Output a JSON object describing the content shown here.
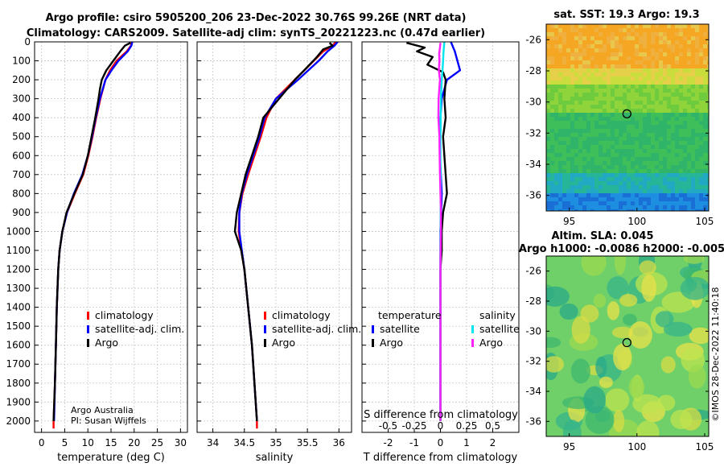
{
  "header": {
    "title_line1": "Argo profile: csiro 5905200_206 23-Dec-2022 30.76S 99.26E (NRT data)",
    "title_line2": "Climatology: CARS2009. Satellite-adj clim: synTS_20221223.nc (0.47d earlier)"
  },
  "credits": {
    "line1": "Argo Australia",
    "line2": "PI: Susan Wijffels"
  },
  "watermark": "©IMOS 28-Dec-2022 11:40:18",
  "colors": {
    "climatology": "#ff0000",
    "satellite": "#0000ff",
    "argo": "#000000",
    "sat_salinity": "#00e5ee",
    "argo_salinity": "#ff22ff"
  },
  "chart_data": [
    {
      "id": "temperature",
      "type": "line",
      "xlabel": "temperature (deg C)",
      "xlim": [
        -1.5,
        31.5
      ],
      "xticks": [
        0,
        5,
        10,
        15,
        20,
        25,
        30
      ],
      "ylim": [
        0,
        2060
      ],
      "yticks": [
        0,
        100,
        200,
        300,
        400,
        500,
        600,
        700,
        800,
        900,
        1000,
        1100,
        1200,
        1300,
        1400,
        1500,
        1600,
        1700,
        1800,
        1900,
        2000
      ],
      "legend": [
        "climatology",
        "satellite-adj. clim.",
        "Argo"
      ],
      "series": [
        {
          "name": "climatology",
          "pressure": [
            0,
            20,
            50,
            100,
            150,
            200,
            300,
            400,
            500,
            600,
            700,
            800,
            900,
            1000,
            1100,
            1200,
            1400,
            1600,
            1800,
            2000,
            2040
          ],
          "values": [
            19.5,
            19.3,
            18.4,
            16.2,
            14.8,
            13.8,
            12.7,
            11.8,
            11.0,
            10.1,
            9.0,
            7.2,
            5.5,
            4.5,
            3.9,
            3.6,
            3.3,
            3.1,
            2.9,
            2.6,
            2.6
          ]
        },
        {
          "name": "satellite-adj. clim.",
          "pressure": [
            0,
            20,
            50,
            100,
            150,
            200,
            300,
            400,
            500,
            600,
            700,
            800,
            900,
            1000,
            1100,
            1200,
            1400,
            1600,
            1800,
            2000
          ],
          "values": [
            19.6,
            19.4,
            18.6,
            16.6,
            15.1,
            13.8,
            12.6,
            11.7,
            10.9,
            10.0,
            8.8,
            7.0,
            5.5,
            4.5,
            3.9,
            3.6,
            3.3,
            3.1,
            2.9,
            2.7
          ]
        },
        {
          "name": "Argo",
          "pressure": [
            5,
            20,
            50,
            100,
            150,
            200,
            250,
            300,
            400,
            500,
            600,
            700,
            800,
            900,
            1000,
            1100,
            1200,
            1400,
            1600,
            1800,
            2000
          ],
          "values": [
            19.2,
            18.0,
            17.0,
            15.5,
            14.0,
            13.0,
            12.6,
            12.3,
            11.6,
            10.8,
            10.0,
            8.9,
            7.1,
            5.4,
            4.5,
            3.9,
            3.6,
            3.3,
            3.1,
            2.9,
            2.6
          ]
        }
      ]
    },
    {
      "id": "salinity",
      "type": "line",
      "xlabel": "salinity",
      "xlim": [
        33.75,
        36.2
      ],
      "xticks": [
        34,
        34.5,
        35,
        35.5,
        36
      ],
      "ylim": [
        0,
        2060
      ],
      "legend": [
        "climatology",
        "satellite-adj. clim.",
        "Argo"
      ],
      "series": [
        {
          "name": "climatology",
          "pressure": [
            0,
            20,
            50,
            100,
            200,
            300,
            400,
            500,
            600,
            700,
            800,
            900,
            1000,
            1100,
            1200,
            1400,
            1600,
            1800,
            2000,
            2040
          ],
          "values": [
            35.95,
            35.9,
            35.75,
            35.6,
            35.3,
            35.0,
            34.85,
            34.76,
            34.66,
            34.56,
            34.47,
            34.42,
            34.41,
            34.45,
            34.5,
            34.56,
            34.62,
            34.66,
            34.7,
            34.7
          ]
        },
        {
          "name": "satellite-adj. clim.",
          "pressure": [
            0,
            20,
            50,
            100,
            200,
            300,
            400,
            500,
            600,
            700,
            800,
            900,
            1000,
            1100,
            1200,
            1400,
            1600,
            1800,
            2000
          ],
          "values": [
            35.98,
            35.93,
            35.82,
            35.68,
            35.35,
            35.0,
            34.82,
            34.74,
            34.64,
            34.54,
            34.46,
            34.42,
            34.42,
            34.46,
            34.5,
            34.56,
            34.62,
            34.66,
            34.7
          ]
        },
        {
          "name": "Argo",
          "pressure": [
            5,
            20,
            40,
            80,
            150,
            200,
            300,
            400,
            500,
            600,
            700,
            800,
            900,
            1000,
            1100,
            1200,
            1400,
            1600,
            1800,
            2000
          ],
          "values": [
            35.85,
            35.9,
            35.75,
            35.65,
            35.45,
            35.3,
            35.05,
            34.8,
            34.72,
            34.62,
            34.52,
            34.45,
            34.38,
            34.35,
            34.45,
            34.5,
            34.56,
            34.62,
            34.66,
            34.7
          ]
        }
      ]
    },
    {
      "id": "difference",
      "type": "line",
      "xlabel": "T difference from climatology",
      "xlabel_top": "S difference from climatology",
      "xlim": [
        -3,
        3
      ],
      "xticks": [
        -2,
        -1,
        0,
        1,
        2
      ],
      "xticks_top": [
        "-0.5",
        "-0.25",
        "0",
        "0.25",
        "0.5"
      ],
      "ylim": [
        0,
        2060
      ],
      "legend_left_title": "temperature",
      "legend_right_title": "salinity",
      "legend_left": [
        "satellite",
        "Argo"
      ],
      "legend_right": [
        "satellite",
        "Argo"
      ],
      "series": [
        {
          "name": "T satellite",
          "pressure": [
            0,
            50,
            100,
            150,
            200,
            300,
            400,
            600,
            800,
            1000,
            1200,
            1400,
            1600,
            1800,
            2000
          ],
          "values": [
            0.4,
            0.55,
            0.65,
            0.75,
            0.25,
            0.05,
            0,
            -0.02,
            0.05,
            0,
            0,
            0,
            0,
            0,
            0
          ]
        },
        {
          "name": "T Argo",
          "pressure": [
            5,
            30,
            50,
            80,
            120,
            160,
            200,
            300,
            400,
            500,
            600,
            700,
            800,
            900,
            1000,
            1100,
            1200,
            1400,
            1600,
            1800,
            2000
          ],
          "values": [
            -1.3,
            -0.6,
            -0.9,
            -0.3,
            -0.5,
            0.1,
            0.2,
            0.15,
            0.2,
            0.1,
            0.15,
            0.2,
            0.25,
            0.1,
            0.05,
            0.05,
            0,
            0,
            0,
            0,
            0
          ]
        },
        {
          "name": "S satellite",
          "pressure": [
            0,
            50,
            100,
            150,
            200,
            300,
            400,
            600,
            800,
            1000,
            1200,
            1400,
            1600,
            1800,
            2000
          ],
          "values": [
            0.15,
            0.12,
            0.1,
            0.08,
            0.05,
            0.02,
            0.01,
            0,
            0.01,
            0.01,
            0,
            0,
            0,
            0,
            0
          ]
        },
        {
          "name": "S Argo",
          "pressure": [
            5,
            30,
            60,
            100,
            150,
            200,
            300,
            400,
            500,
            600,
            700,
            800,
            900,
            1000,
            1100,
            1200,
            1400,
            1600,
            1800,
            2000
          ],
          "values": [
            0,
            -0.02,
            -0.05,
            -0.04,
            -0.06,
            -0.02,
            -0.07,
            -0.08,
            -0.04,
            -0.03,
            -0.02,
            0,
            0.02,
            0.02,
            0.01,
            0,
            0,
            0,
            0,
            0
          ]
        }
      ]
    },
    {
      "id": "sst-map",
      "type": "heatmap",
      "title": "sat. SST: 19.3 Argo: 19.3",
      "xticks": [
        "95",
        "100",
        "105"
      ],
      "yticks": [
        "-26",
        "-28",
        "-30",
        "-32",
        "-34",
        "-36"
      ],
      "xlim": [
        93.3,
        105.3
      ],
      "ylim": [
        -37,
        -25
      ],
      "marker": {
        "lon": 99.26,
        "lat": -30.76
      }
    },
    {
      "id": "sla-map",
      "type": "heatmap",
      "title": "Altim. SLA: 0.045",
      "subtitle": "Argo h1000: -0.0086 h2000: -0.005",
      "xticks": [
        "95",
        "100",
        "105"
      ],
      "yticks": [
        "-26",
        "-28",
        "-30",
        "-32",
        "-34",
        "-36"
      ],
      "xlim": [
        93.3,
        105.3
      ],
      "ylim": [
        -37,
        -25
      ],
      "marker": {
        "lon": 99.26,
        "lat": -30.76
      }
    }
  ]
}
